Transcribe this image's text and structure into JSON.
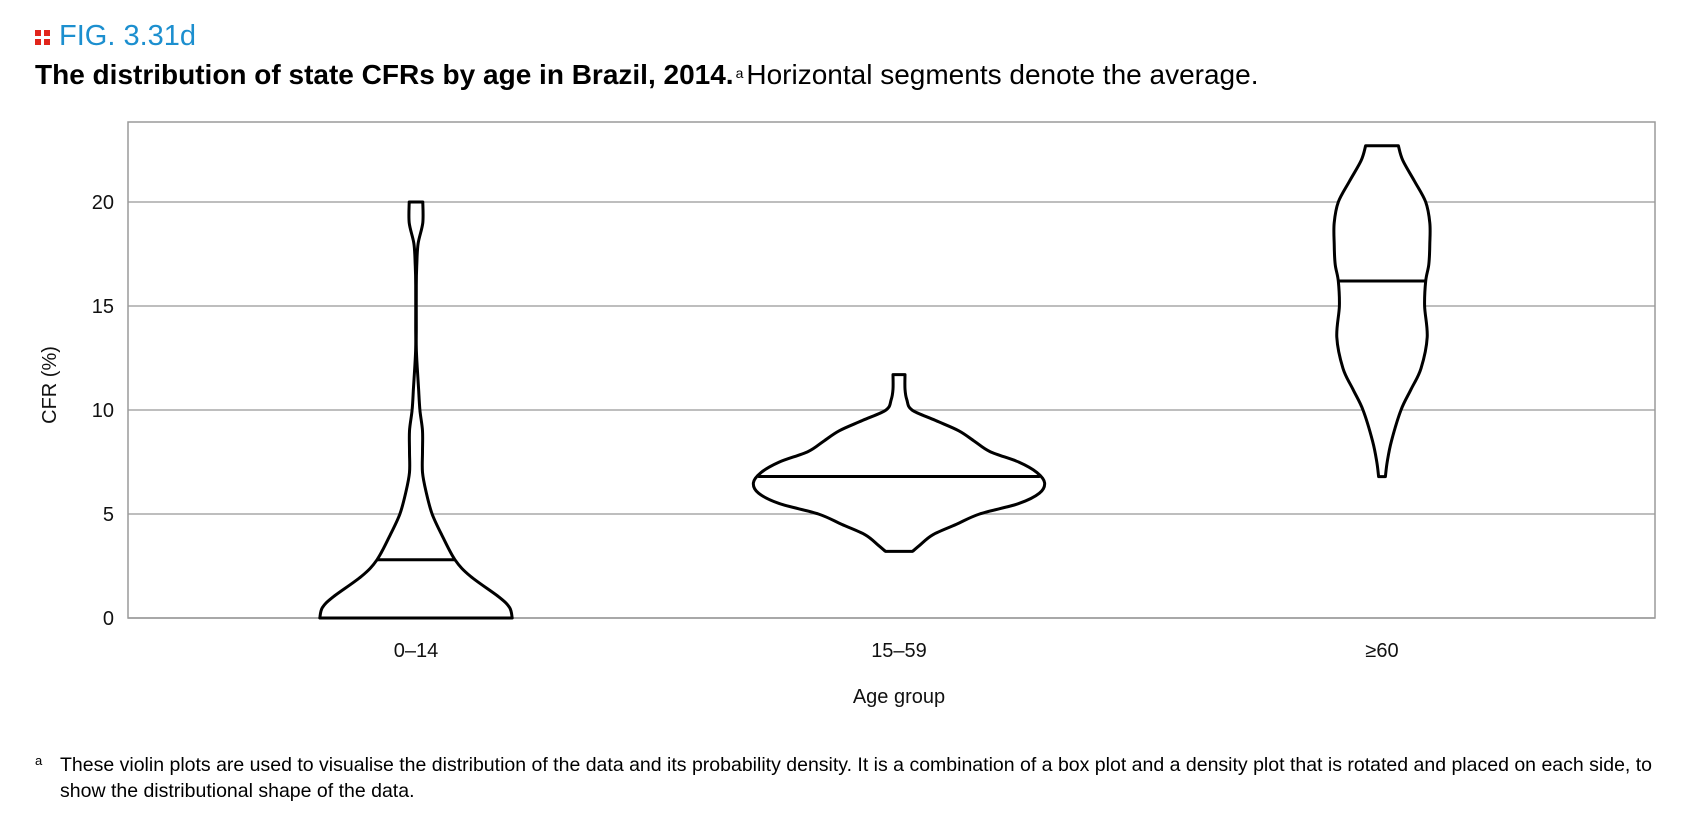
{
  "figure_label": "FIG. 3.31d",
  "title": {
    "bold": "The distribution of state CFRs by age in Brazil, 2014.",
    "marker": "a",
    "rest": "Horizontal segments denote the average."
  },
  "chart_data": {
    "type": "violin",
    "title": "",
    "xlabel": "Age group",
    "ylabel": "CFR (%)",
    "ylim": [
      0,
      25
    ],
    "yticks": [
      0,
      5,
      10,
      15,
      20
    ],
    "grid": true,
    "categories": [
      "0–14",
      "15–59",
      "≥60"
    ],
    "series": [
      {
        "category": "0–14",
        "mean": 2.8,
        "min": 0,
        "max": 20,
        "profile": [
          [
            0,
            3.7
          ],
          [
            0.5,
            3.6
          ],
          [
            1,
            3.2
          ],
          [
            2,
            2.1
          ],
          [
            2.8,
            1.5
          ],
          [
            4,
            0.99
          ],
          [
            5,
            0.62
          ],
          [
            6,
            0.4
          ],
          [
            7,
            0.25
          ],
          [
            8,
            0.25
          ],
          [
            9,
            0.25
          ],
          [
            10,
            0.15
          ],
          [
            11,
            0.1
          ],
          [
            12,
            0.05
          ],
          [
            13,
            0.01
          ],
          [
            14,
            0.01
          ],
          [
            16,
            0.01
          ],
          [
            17,
            0.03
          ],
          [
            18,
            0.08
          ],
          [
            19,
            0.26
          ],
          [
            20,
            0.26
          ]
        ]
      },
      {
        "category": "15–59",
        "mean": 6.8,
        "min": 3.2,
        "max": 11.7,
        "profile": [
          [
            3.2,
            0.52
          ],
          [
            3.5,
            0.8
          ],
          [
            4,
            1.3
          ],
          [
            4.5,
            2.2
          ],
          [
            5,
            3.1
          ],
          [
            5.5,
            4.6
          ],
          [
            6,
            5.4
          ],
          [
            6.5,
            5.6
          ],
          [
            7,
            5.3
          ],
          [
            7.5,
            4.6
          ],
          [
            8,
            3.5
          ],
          [
            8.5,
            2.9
          ],
          [
            9,
            2.3
          ],
          [
            9.5,
            1.4
          ],
          [
            10,
            0.5
          ],
          [
            10.5,
            0.3
          ],
          [
            11,
            0.23
          ],
          [
            11.7,
            0.23
          ]
        ]
      },
      {
        "category": "≥60",
        "mean": 16.2,
        "min": 6.8,
        "max": 22.7,
        "profile": [
          [
            6.8,
            0.13
          ],
          [
            7.5,
            0.2
          ],
          [
            8.5,
            0.36
          ],
          [
            10,
            0.73
          ],
          [
            11,
            1.12
          ],
          [
            12,
            1.5
          ],
          [
            13.5,
            1.74
          ],
          [
            15,
            1.64
          ],
          [
            16.2,
            1.68
          ],
          [
            17,
            1.8
          ],
          [
            18,
            1.84
          ],
          [
            19,
            1.84
          ],
          [
            20,
            1.68
          ],
          [
            21,
            1.25
          ],
          [
            22,
            0.8
          ],
          [
            22.7,
            0.63
          ]
        ]
      }
    ]
  },
  "footnote": {
    "marker": "a",
    "text": "These violin plots are used to visualise the distribution of the data and its probability density. It is a combination of a box plot and a density plot that is rotated and placed on each side, to show the distributional shape of the data."
  }
}
